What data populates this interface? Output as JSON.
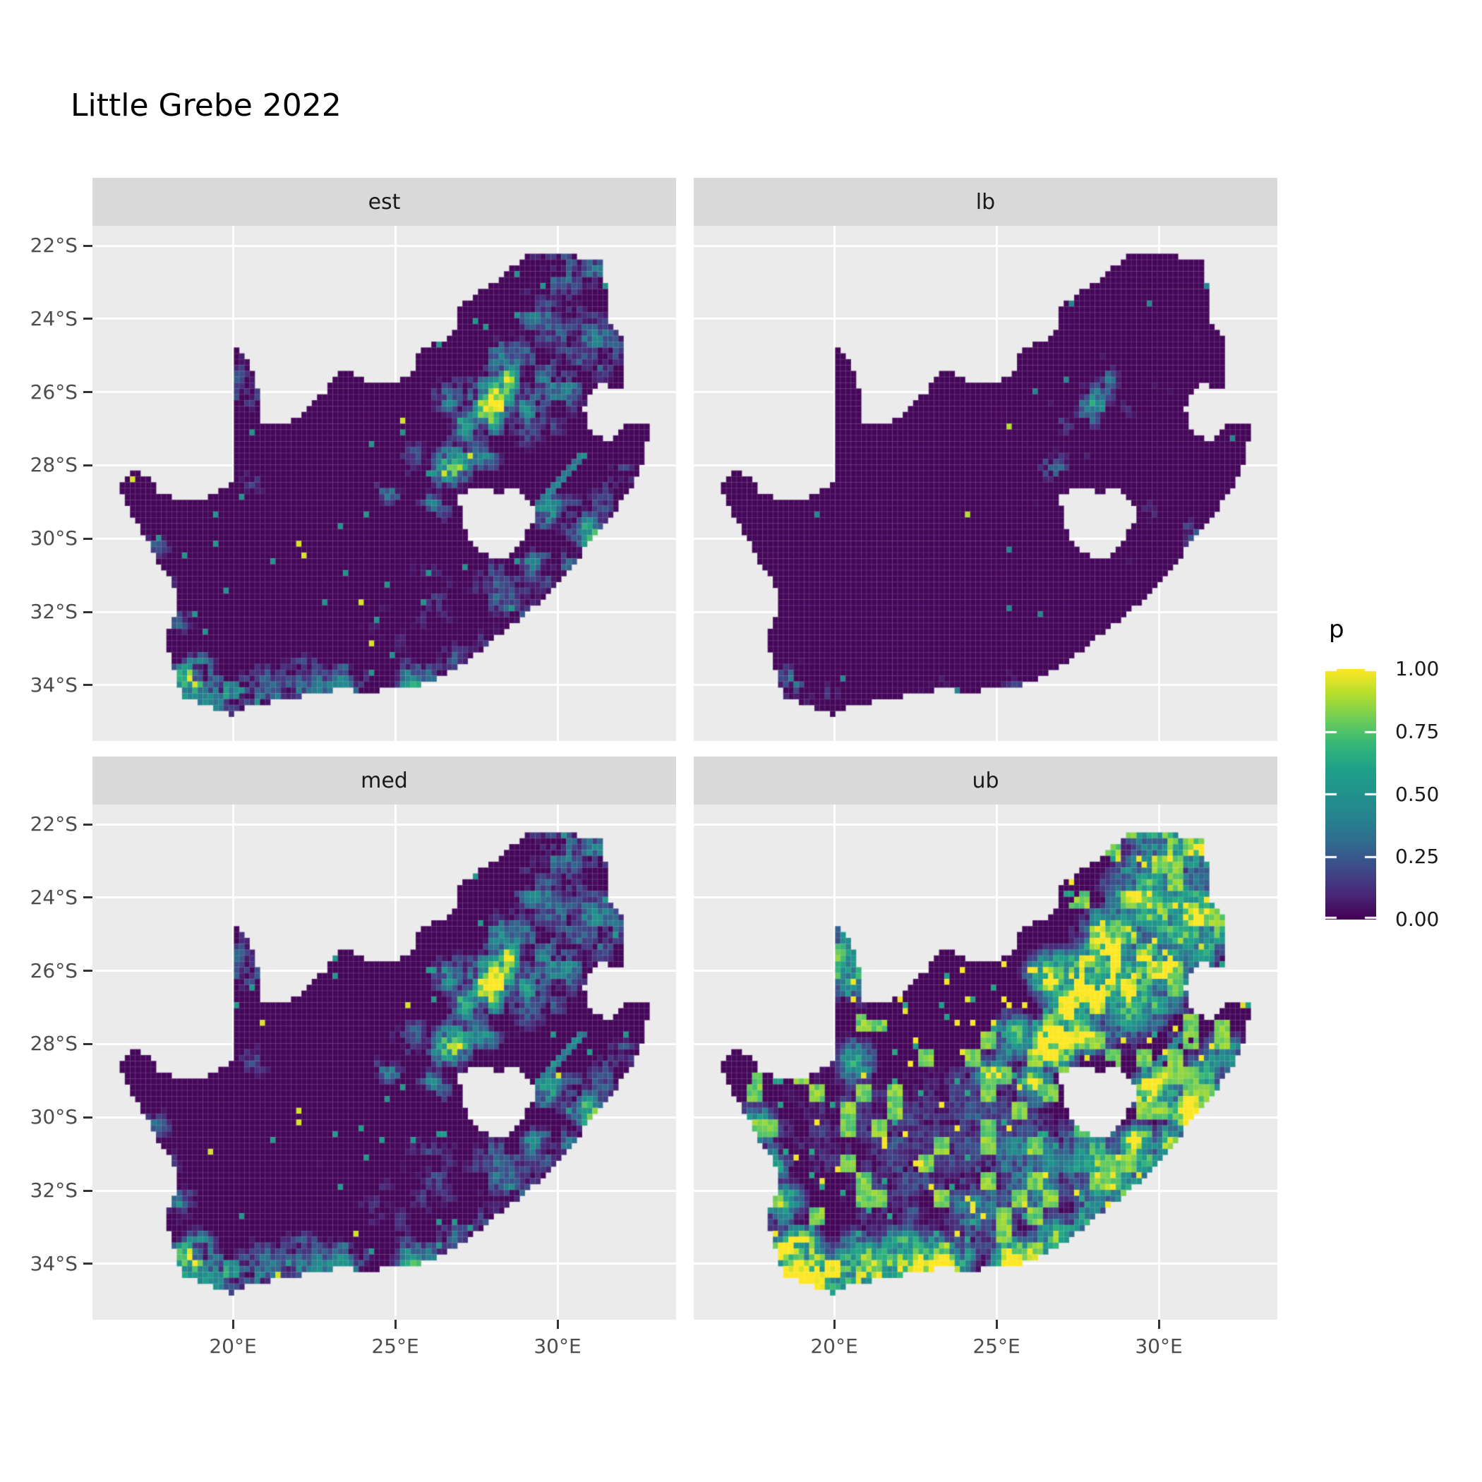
{
  "title": "Little Grebe 2022",
  "facets": {
    "labels": [
      "est",
      "lb",
      "med",
      "ub"
    ]
  },
  "axis": {
    "y_tick_labels": [
      "22°S",
      "24°S",
      "26°S",
      "28°S",
      "30°S",
      "32°S",
      "34°S"
    ],
    "x_tick_labels": [
      "20°E",
      "25°E",
      "30°E"
    ]
  },
  "legend": {
    "title": "p",
    "tick_labels": [
      "1.00",
      "0.75",
      "0.50",
      "0.25",
      "0.00"
    ]
  },
  "colors": {
    "background": "#FFFFFF",
    "panel_bg": "#EBEBEB",
    "strip_bg": "#D9D9D9",
    "gridline": "#FFFFFF",
    "tick": "#333333",
    "axis_text": "#4D4D4D",
    "strip_text": "#1A1A1A",
    "title_text": "#000000",
    "cell_border": "rgba(255,255,255,0.16)"
  },
  "chart_data": {
    "type": "heatmap",
    "title": "Little Grebe 2022",
    "description": "Faceted raster maps of South Africa showing estimated occupancy probability p (est), lower bound (lb), median (med) and upper bound (ub) for Little Grebe in 2022; viridis colour scale from p=0 (dark purple) to p=1 (yellow); Lesotho and Eswatini excluded (grey holes).",
    "facet_labels": [
      "est",
      "lb",
      "med",
      "ub"
    ],
    "x": {
      "tick_values": [
        20,
        25,
        30
      ],
      "tick_labels": [
        "20°E",
        "25°E",
        "30°E"
      ],
      "range_deg": [
        15.67,
        33.65
      ]
    },
    "y": {
      "tick_values": [
        -22,
        -24,
        -26,
        -28,
        -30,
        -32,
        -34
      ],
      "tick_labels": [
        "22°S",
        "24°S",
        "26°S",
        "28°S",
        "30°S",
        "32°S",
        "34°S"
      ],
      "range_deg": [
        -35.5,
        -21.46
      ]
    },
    "legend": {
      "title": "p",
      "breaks": [
        1.0,
        0.75,
        0.5,
        0.25,
        0.0
      ],
      "labels": [
        "1.00",
        "0.75",
        "0.50",
        "0.25",
        "0.00"
      ]
    },
    "viridis_stops": [
      [
        0.0,
        68,
        1,
        84
      ],
      [
        0.1,
        72,
        40,
        120
      ],
      [
        0.2,
        62,
        74,
        137
      ],
      [
        0.3,
        49,
        104,
        142
      ],
      [
        0.4,
        38,
        130,
        142
      ],
      [
        0.5,
        33,
        145,
        140
      ],
      [
        0.6,
        31,
        160,
        136
      ],
      [
        0.7,
        53,
        183,
        121
      ],
      [
        0.8,
        109,
        205,
        89
      ],
      [
        0.9,
        180,
        222,
        44
      ],
      [
        1.0,
        253,
        231,
        37
      ]
    ],
    "grid_step_deg": 0.16,
    "seed": 2022,
    "south_africa_outline": [
      [
        16.45,
        -28.57
      ],
      [
        16.9,
        -28.08
      ],
      [
        17.4,
        -28.35
      ],
      [
        17.75,
        -28.77
      ],
      [
        18.3,
        -28.9
      ],
      [
        19.0,
        -28.95
      ],
      [
        19.55,
        -28.72
      ],
      [
        19.99,
        -28.45
      ],
      [
        19.99,
        -24.77
      ],
      [
        20.38,
        -25.05
      ],
      [
        20.64,
        -25.55
      ],
      [
        20.8,
        -26.1
      ],
      [
        20.87,
        -26.6
      ],
      [
        20.92,
        -26.85
      ],
      [
        21.65,
        -26.86
      ],
      [
        22.1,
        -26.62
      ],
      [
        22.64,
        -26.13
      ],
      [
        22.9,
        -25.96
      ],
      [
        23.25,
        -25.32
      ],
      [
        23.94,
        -25.62
      ],
      [
        24.5,
        -25.77
      ],
      [
        25.0,
        -25.77
      ],
      [
        25.59,
        -25.48
      ],
      [
        25.62,
        -24.92
      ],
      [
        26.0,
        -24.72
      ],
      [
        26.5,
        -24.64
      ],
      [
        26.86,
        -24.3
      ],
      [
        27.0,
        -23.66
      ],
      [
        27.6,
        -23.22
      ],
      [
        28.22,
        -22.9
      ],
      [
        29.05,
        -22.22
      ],
      [
        29.45,
        -22.16
      ],
      [
        30.0,
        -22.25
      ],
      [
        30.65,
        -22.3
      ],
      [
        31.3,
        -22.41
      ],
      [
        31.56,
        -23.25
      ],
      [
        31.55,
        -24.0
      ],
      [
        31.96,
        -24.4
      ],
      [
        32.02,
        -25.1
      ],
      [
        32.0,
        -25.61
      ],
      [
        31.94,
        -25.96
      ],
      [
        31.33,
        -25.73
      ],
      [
        30.95,
        -26.02
      ],
      [
        30.78,
        -26.46
      ],
      [
        30.9,
        -26.81
      ],
      [
        31.16,
        -27.2
      ],
      [
        31.56,
        -27.31
      ],
      [
        31.97,
        -27.05
      ],
      [
        32.16,
        -26.86
      ],
      [
        32.89,
        -26.86
      ],
      [
        32.58,
        -28.0
      ],
      [
        32.24,
        -28.62
      ],
      [
        31.74,
        -29.26
      ],
      [
        31.04,
        -29.96
      ],
      [
        30.64,
        -30.51
      ],
      [
        30.24,
        -30.96
      ],
      [
        29.54,
        -31.66
      ],
      [
        28.84,
        -32.16
      ],
      [
        28.1,
        -32.7
      ],
      [
        27.4,
        -33.2
      ],
      [
        26.5,
        -33.76
      ],
      [
        25.66,
        -34.03
      ],
      [
        25.0,
        -34.0
      ],
      [
        24.2,
        -34.2
      ],
      [
        23.4,
        -34.1
      ],
      [
        22.5,
        -34.2
      ],
      [
        21.5,
        -34.42
      ],
      [
        20.55,
        -34.52
      ],
      [
        20.0,
        -34.83
      ],
      [
        19.35,
        -34.62
      ],
      [
        18.85,
        -34.42
      ],
      [
        18.42,
        -34.33
      ],
      [
        18.3,
        -33.95
      ],
      [
        18.15,
        -33.35
      ],
      [
        17.85,
        -32.75
      ],
      [
        18.3,
        -32.0
      ],
      [
        18.2,
        -31.3
      ],
      [
        17.65,
        -30.55
      ],
      [
        17.15,
        -29.7
      ],
      [
        16.75,
        -29.1
      ]
    ],
    "lesotho_hole": [
      [
        26.98,
        -28.85
      ],
      [
        27.4,
        -28.62
      ],
      [
        27.78,
        -28.6
      ],
      [
        28.2,
        -28.76
      ],
      [
        28.66,
        -28.6
      ],
      [
        29.16,
        -28.92
      ],
      [
        29.36,
        -29.26
      ],
      [
        29.16,
        -29.66
      ],
      [
        28.9,
        -30.1
      ],
      [
        28.3,
        -30.56
      ],
      [
        27.76,
        -30.42
      ],
      [
        27.36,
        -30.06
      ],
      [
        27.02,
        -29.56
      ]
    ],
    "hotspots": [
      [
        28.05,
        -26.1,
        0.55,
        1.15
      ],
      [
        28.3,
        -25.72,
        0.5,
        1.0
      ],
      [
        27.85,
        -26.7,
        0.45,
        0.85
      ],
      [
        27.25,
        -26.85,
        0.55,
        0.7
      ],
      [
        26.7,
        -26.1,
        0.5,
        0.6
      ],
      [
        29.2,
        -26.5,
        1.0,
        0.55
      ],
      [
        29.9,
        -25.9,
        0.8,
        0.6
      ],
      [
        28.6,
        -25.1,
        0.7,
        0.6
      ],
      [
        29.4,
        -23.9,
        0.7,
        0.5
      ],
      [
        30.2,
        -22.6,
        0.9,
        0.5
      ],
      [
        31.2,
        -22.8,
        0.7,
        0.5
      ],
      [
        31.1,
        -24.4,
        0.8,
        0.5
      ],
      [
        30.9,
        -25.4,
        0.7,
        0.55
      ],
      [
        31.6,
        -24.85,
        0.6,
        0.45
      ],
      [
        30.0,
        -24.5,
        0.9,
        0.45
      ],
      [
        26.75,
        -28.05,
        0.45,
        0.95
      ],
      [
        26.2,
        -29.12,
        0.4,
        0.65
      ],
      [
        24.75,
        -28.75,
        0.4,
        0.5
      ],
      [
        25.5,
        -27.8,
        0.5,
        0.5
      ],
      [
        27.7,
        -27.7,
        0.5,
        0.55
      ],
      [
        20.7,
        -28.45,
        0.5,
        0.42
      ],
      [
        20.45,
        -25.7,
        0.8,
        0.48
      ],
      [
        20.2,
        -24.95,
        0.5,
        0.4
      ],
      [
        17.6,
        -30.3,
        0.5,
        0.45
      ],
      [
        18.0,
        -31.3,
        0.5,
        0.42
      ],
      [
        18.35,
        -32.35,
        0.5,
        0.48
      ],
      [
        18.55,
        -33.95,
        0.45,
        1.0
      ],
      [
        18.95,
        -33.62,
        0.45,
        0.72
      ],
      [
        19.35,
        -34.45,
        0.7,
        0.75
      ],
      [
        20.2,
        -34.4,
        0.7,
        0.6
      ],
      [
        20.85,
        -34.35,
        0.8,
        0.65
      ],
      [
        22.2,
        -34.05,
        0.7,
        0.7
      ],
      [
        23.4,
        -34.0,
        0.6,
        0.65
      ],
      [
        25.6,
        -33.9,
        0.5,
        0.75
      ],
      [
        26.9,
        -33.3,
        0.5,
        0.55
      ],
      [
        27.9,
        -32.9,
        0.45,
        0.6
      ],
      [
        22.5,
        -31.2,
        2.2,
        0.22
      ],
      [
        20.5,
        -30.2,
        2.0,
        0.18
      ],
      [
        24.2,
        -30.2,
        1.8,
        0.22
      ],
      [
        26.0,
        -31.5,
        1.3,
        0.35
      ],
      [
        24.6,
        -32.6,
        1.0,
        0.35
      ],
      [
        28.0,
        -31.3,
        0.9,
        0.45
      ],
      [
        28.8,
        -31.9,
        0.6,
        0.5
      ],
      [
        29.5,
        -31.0,
        0.5,
        0.45
      ],
      [
        30.9,
        -29.85,
        0.45,
        0.8
      ],
      [
        30.3,
        -30.65,
        0.4,
        0.6
      ],
      [
        29.4,
        -30.7,
        0.35,
        0.8
      ],
      [
        29.7,
        -29.25,
        0.35,
        0.85
      ],
      [
        31.5,
        -28.9,
        0.5,
        0.5
      ],
      [
        32.0,
        -28.4,
        0.5,
        0.45
      ],
      [
        30.4,
        -29.35,
        0.5,
        0.5
      ]
    ],
    "transect_line": {
      "from": [
        29.35,
        -29.15
      ],
      "to": [
        30.78,
        -27.75
      ],
      "width_deg": 0.1,
      "p": 0.5,
      "panels": [
        "est",
        "med",
        "ub"
      ]
    },
    "panel_params": {
      "est": {
        "mult": 1.75,
        "sub": 0.38,
        "spike_t": 0.968,
        "spike_a": 0.95,
        "mid_t": 0.925,
        "mid_a": 0.42,
        "clump_t": 2.0,
        "clump_a": 0.0,
        "core_cap": 0
      },
      "lb": {
        "mult": 1.15,
        "sub": 0.5,
        "spike_t": 0.99,
        "spike_a": 0.9,
        "mid_t": 0.962,
        "mid_a": 0.34,
        "clump_t": 2.0,
        "clump_a": 0.0,
        "core_cap": 0
      },
      "med": {
        "mult": 1.85,
        "sub": 0.35,
        "spike_t": 0.962,
        "spike_a": 0.95,
        "mid_t": 0.915,
        "mid_a": 0.45,
        "clump_t": 2.0,
        "clump_a": 0.0,
        "core_cap": 0
      },
      "ub": {
        "mult": 2.9,
        "sub": 0.22,
        "spike_t": 0.908,
        "spike_a": 1.0,
        "mid_t": 0.865,
        "mid_a": 0.5,
        "clump_t": 0.8,
        "clump_a": 0.9,
        "core_cap": 1
      }
    }
  }
}
